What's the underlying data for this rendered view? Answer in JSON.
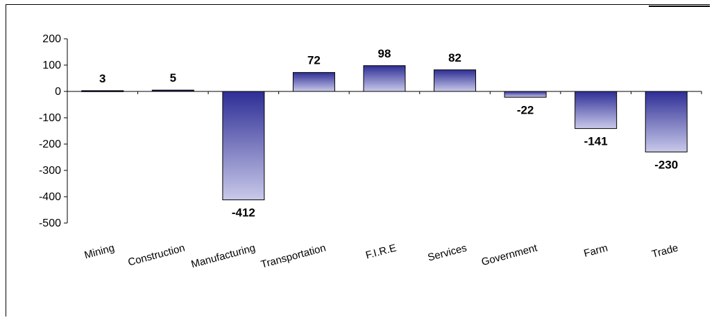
{
  "chart_data": {
    "type": "bar",
    "categories": [
      "Mining",
      "Construction",
      "Manufacturing",
      "Transportation",
      "F.I.R.E",
      "Services",
      "Government",
      "Farm",
      "Trade"
    ],
    "values": [
      3,
      5,
      -412,
      72,
      98,
      82,
      -22,
      -141,
      -230
    ],
    "ylim": [
      -500,
      200
    ],
    "yticks": [
      200,
      100,
      0,
      -100,
      -200,
      -300,
      -400,
      -500
    ],
    "data_labels": [
      "3",
      "5",
      "-412",
      "72",
      "98",
      "82",
      "-22",
      "-141",
      "-230"
    ],
    "grid": false,
    "legend": "none",
    "colors": {
      "bar_top": "#2e2e96",
      "bar_bottom": "#c9c9ea",
      "axis": "#000000"
    }
  }
}
